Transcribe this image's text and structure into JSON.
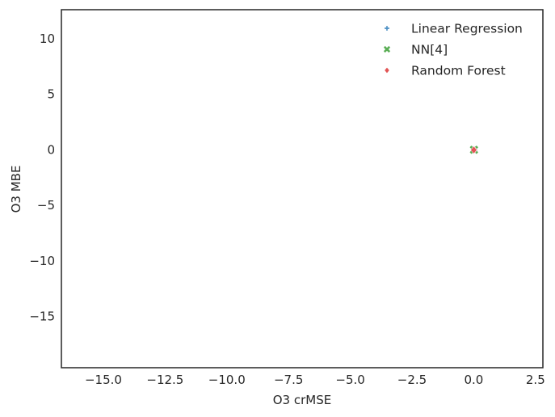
{
  "chart_data": {
    "type": "scatter",
    "xlabel": "O3 crMSE",
    "ylabel": "O3 MBE",
    "xlim": [
      -16.7,
      2.8
    ],
    "ylim": [
      -19.6,
      12.6
    ],
    "xticks": [
      -15.0,
      -12.5,
      -10.0,
      -7.5,
      -5.0,
      -2.5,
      0.0,
      2.5
    ],
    "xtick_labels": [
      "−15.0",
      "−12.5",
      "−10.0",
      "−7.5",
      "−5.0",
      "−2.5",
      "0.0",
      "2.5"
    ],
    "yticks": [
      10,
      5,
      0,
      -5,
      -10,
      -15
    ],
    "ytick_labels": [
      "10",
      "5",
      "0",
      "−5",
      "−10",
      "−15"
    ],
    "grid": false,
    "legend_position": "top-right",
    "series": [
      {
        "name": "Linear Regression",
        "marker": "plus",
        "color": "#4c8fc4",
        "x": [
          0.0,
          0.01,
          0.02
        ],
        "y": [
          0.0,
          0.02,
          -0.01
        ]
      },
      {
        "name": "NN[4]",
        "marker": "x",
        "color": "#5aae55",
        "x": [
          0.0,
          0.02,
          0.01
        ],
        "y": [
          0.01,
          0.0,
          -0.02
        ]
      },
      {
        "name": "Random Forest",
        "marker": "diamond",
        "color": "#e25555",
        "x": [
          0.0,
          0.01,
          0.02,
          0.0
        ],
        "y": [
          0.0,
          0.01,
          -0.01,
          -0.02
        ]
      }
    ]
  }
}
